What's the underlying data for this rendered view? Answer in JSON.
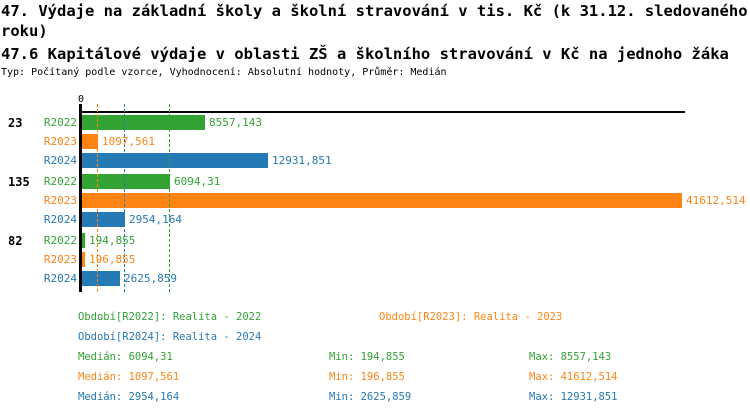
{
  "header": {
    "title_line1": "47. Výdaje na základní školy a školní stravování v tis. Kč (k 31.12. sledovaného",
    "title_line2": "roku)",
    "subtitle": "47.6 Kapitálové výdaje v oblasti ZŠ a školního stravování v Kč na jednoho žáka",
    "meta": "Typ: Počítaný podle vzorce, Vyhodnocení: Absolutní hodnoty, Průměr: Medián"
  },
  "colors": {
    "green": "#33a333",
    "orange": "#ff8414",
    "blue": "#2579b5",
    "axis": "#000000"
  },
  "chart_data": {
    "type": "bar",
    "orientation": "horizontal",
    "value_axis_tick": "0",
    "value_axis_max": 41612.514,
    "grid": "median-lines-dashed",
    "groups": [
      "23",
      "135",
      "82"
    ],
    "series": [
      {
        "name": "R2022",
        "color_key": "green",
        "median": "6094,31",
        "values": [
          "8557,143",
          "6094,31",
          "194,855"
        ]
      },
      {
        "name": "R2023",
        "color_key": "orange",
        "median": "1097,561",
        "values": [
          "1097,561",
          "41612,514",
          "196,855"
        ]
      },
      {
        "name": "R2024",
        "color_key": "blue",
        "median": "2954,164",
        "values": [
          "12931,851",
          "2954,164",
          "2625,859"
        ]
      }
    ]
  },
  "legend": [
    {
      "text": "Období[R2022]: Realita - 2022",
      "color_key": "green"
    },
    {
      "text": "Období[R2023]: Realita - 2023",
      "color_key": "orange"
    },
    {
      "text": "Období[R2024]: Realita - 2024",
      "color_key": "blue"
    }
  ],
  "stats": [
    {
      "color_key": "green",
      "median": "Medián: 6094,31",
      "min": "Min: 194,855",
      "max": "Max: 8557,143"
    },
    {
      "color_key": "orange",
      "median": "Medián: 1097,561",
      "min": "Min: 196,855",
      "max": "Max: 41612,514"
    },
    {
      "color_key": "blue",
      "median": "Medián: 2954,164",
      "min": "Min: 2625,859",
      "max": "Max: 12931,851"
    }
  ]
}
